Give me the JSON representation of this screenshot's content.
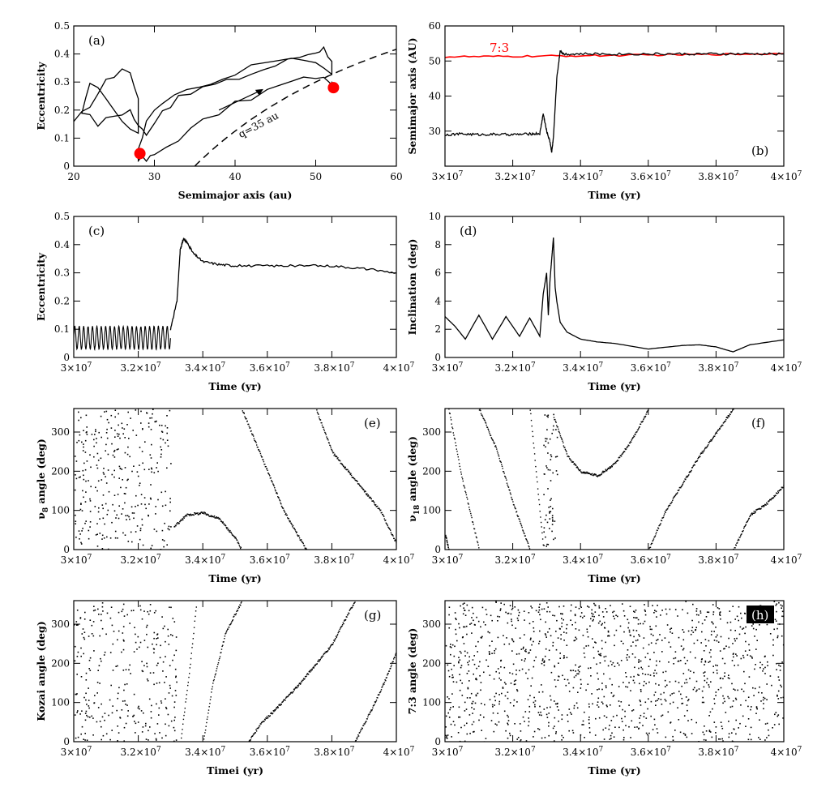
{
  "chart_data": [
    {
      "id": "a",
      "type": "line",
      "panel_label": "(a)",
      "xlabel": "Semimajor axis (au)",
      "ylabel": "Eccentricity",
      "xlim": [
        20,
        60
      ],
      "ylim": [
        0,
        0.5
      ],
      "xticks": [
        "20",
        "30",
        "40",
        "50",
        "60"
      ],
      "yticks": [
        "0",
        "0.1",
        "0.2",
        "0.3",
        "0.4",
        "0.5"
      ],
      "annotations": [
        {
          "text": "q=35 au"
        }
      ],
      "series": [
        {
          "kind": "trajectory",
          "color": "#000000",
          "x": [
            20,
            22,
            24,
            26,
            27,
            28,
            28,
            26,
            24,
            22,
            21,
            23,
            25,
            27,
            28,
            29,
            31,
            33,
            36,
            39,
            42,
            45,
            48,
            50,
            51,
            52,
            52,
            50,
            47,
            44,
            40,
            37,
            34,
            31,
            29,
            28,
            28,
            29,
            30,
            33,
            36,
            40,
            44,
            47,
            50,
            52,
            52
          ],
          "y": [
            0.15,
            0.22,
            0.3,
            0.35,
            0.33,
            0.25,
            0.12,
            0.16,
            0.25,
            0.3,
            0.2,
            0.15,
            0.18,
            0.2,
            0.14,
            0.12,
            0.2,
            0.24,
            0.28,
            0.3,
            0.33,
            0.36,
            0.39,
            0.41,
            0.42,
            0.38,
            0.32,
            0.36,
            0.38,
            0.37,
            0.33,
            0.3,
            0.27,
            0.23,
            0.15,
            0.06,
            0.03,
            0.02,
            0.04,
            0.1,
            0.16,
            0.22,
            0.27,
            0.3,
            0.32,
            0.3,
            0.28
          ]
        },
        {
          "kind": "markers",
          "color": "#ff0000",
          "x": [
            28.2,
            52.2
          ],
          "y": [
            0.045,
            0.28
          ]
        },
        {
          "kind": "q35-curve",
          "style": "dashed",
          "q": 35,
          "x_range": [
            35,
            60
          ]
        }
      ]
    },
    {
      "id": "b",
      "type": "line",
      "panel_label": "(b)",
      "xlabel": "Time (yr)",
      "ylabel": "Semimajor axis (AU)",
      "xlim": [
        30000000.0,
        40000000.0
      ],
      "ylim": [
        20,
        60
      ],
      "xticks": [
        "3×10",
        "3.2×10",
        "3.4×10",
        "3.6×10",
        "3.8×10",
        "4×10"
      ],
      "xtick_exp": "7",
      "yticks": [
        "30",
        "40",
        "50",
        "60"
      ],
      "annotations": [
        {
          "text": "7:3",
          "color": "#ff0000"
        }
      ],
      "series": [
        {
          "kind": "resonance",
          "color": "#ff0000",
          "x": [
            30000000.0,
            32000000.0,
            34000000.0,
            36000000.0,
            38000000.0,
            40000000.0
          ],
          "y": [
            51.2,
            51.3,
            51.5,
            51.7,
            51.9,
            52.1
          ]
        },
        {
          "kind": "orbit",
          "color": "#000000",
          "x": [
            30000000.0,
            30500000.0,
            31000000.0,
            31500000.0,
            32000000.0,
            32500000.0,
            32800000.0,
            32900000.0,
            33000000.0,
            33100000.0,
            33150000.0,
            33200000.0,
            33300000.0,
            33400000.0,
            33500000.0,
            34000000.0,
            35000000.0,
            36000000.0,
            37000000.0,
            38000000.0,
            39000000.0,
            40000000.0
          ],
          "y": [
            29,
            29.2,
            29,
            29.1,
            29,
            29.2,
            29.3,
            35,
            30,
            27,
            24,
            28,
            45,
            53,
            52,
            52,
            52,
            52,
            52,
            52,
            52,
            52
          ]
        }
      ]
    },
    {
      "id": "c",
      "type": "line",
      "panel_label": "(c)",
      "xlabel": "Time (yr)",
      "ylabel": "Eccentricity",
      "xlim": [
        30000000.0,
        40000000.0
      ],
      "ylim": [
        0,
        0.5
      ],
      "xticks": [
        "3×10",
        "3.2×10",
        "3.4×10",
        "3.6×10",
        "3.8×10",
        "4×10"
      ],
      "xtick_exp": "7",
      "yticks": [
        "0",
        "0.1",
        "0.2",
        "0.3",
        "0.4",
        "0.5"
      ],
      "series": [
        {
          "kind": "oscillation",
          "color": "#000000",
          "x_range": [
            30000000.0,
            33000000.0
          ],
          "y_min": 0.03,
          "y_max": 0.11,
          "cycles": 22
        },
        {
          "kind": "line",
          "color": "#000000",
          "x": [
            33000000.0,
            33200000.0,
            33300000.0,
            33400000.0,
            33500000.0,
            33700000.0,
            34000000.0,
            34500000.0,
            35000000.0,
            36000000.0,
            37000000.0,
            38000000.0,
            39000000.0,
            40000000.0
          ],
          "y": [
            0.1,
            0.2,
            0.38,
            0.42,
            0.41,
            0.37,
            0.34,
            0.33,
            0.325,
            0.325,
            0.325,
            0.325,
            0.315,
            0.3
          ]
        }
      ]
    },
    {
      "id": "d",
      "type": "line",
      "panel_label": "(d)",
      "xlabel": "Time (yr)",
      "ylabel": "Inclination (deg)",
      "xlim": [
        30000000.0,
        40000000.0
      ],
      "ylim": [
        0,
        10
      ],
      "xticks": [
        "3×10",
        "3.2×10",
        "3.4×10",
        "3.6×10",
        "3.8×10",
        "4×10"
      ],
      "xtick_exp": "7",
      "yticks": [
        "0",
        "2",
        "4",
        "6",
        "8",
        "10"
      ],
      "series": [
        {
          "kind": "line",
          "color": "#000000",
          "x": [
            30000000.0,
            30300000.0,
            30600000.0,
            31000000.0,
            31400000.0,
            31800000.0,
            32200000.0,
            32500000.0,
            32800000.0,
            32900000.0,
            33000000.0,
            33050000.0,
            33100000.0,
            33150000.0,
            33200000.0,
            33250000.0,
            33300000.0,
            33400000.0,
            33600000.0,
            34000000.0,
            34500000.0,
            35000000.0,
            36000000.0,
            37000000.0,
            37500000.0,
            38000000.0,
            38500000.0,
            39000000.0,
            40000000.0
          ],
          "y": [
            2.9,
            2.2,
            1.3,
            3.0,
            1.3,
            2.9,
            1.5,
            2.8,
            1.5,
            4.5,
            6.0,
            3.0,
            5.5,
            7.0,
            8.5,
            5.0,
            4.0,
            2.5,
            1.8,
            1.3,
            1.1,
            1.0,
            0.6,
            0.85,
            0.9,
            0.75,
            0.4,
            0.9,
            1.25
          ]
        }
      ]
    },
    {
      "id": "e",
      "type": "scatter",
      "panel_label": "(e)",
      "xlabel": "Time (yr)",
      "ylabel": "ν",
      "ylabel_subscript": "8",
      "ylabel_suffix": " angle (deg)",
      "xlim": [
        30000000.0,
        40000000.0
      ],
      "ylim": [
        0,
        360
      ],
      "xticks": [
        "3×10",
        "3.2×10",
        "3.4×10",
        "3.6×10",
        "3.8×10",
        "4×10"
      ],
      "xtick_exp": "7",
      "yticks": [
        "0",
        "100",
        "200",
        "300"
      ],
      "series": [
        {
          "kind": "scatter-cloud",
          "x_range": [
            30000000.0,
            33000000.0
          ],
          "y_range": [
            0,
            360
          ],
          "density": 0.6
        },
        {
          "kind": "dotted-track",
          "x": [
            33100000.0,
            33500000.0,
            34000000.0,
            34500000.0,
            35000000.0,
            35200000.0
          ],
          "y": [
            60,
            90,
            95,
            80,
            30,
            0
          ]
        },
        {
          "kind": "dotted-track",
          "x": [
            35200000.0,
            35500000.0,
            36000000.0,
            36500000.0,
            37200000.0
          ],
          "y": [
            360,
            300,
            200,
            100,
            0
          ]
        },
        {
          "kind": "dotted-track",
          "x": [
            37500000.0,
            38000000.0,
            38500000.0,
            39000000.0,
            39500000.0,
            40000000.0
          ],
          "y": [
            360,
            250,
            200,
            150,
            100,
            15
          ]
        }
      ]
    },
    {
      "id": "f",
      "type": "scatter",
      "panel_label": "(f)",
      "xlabel": "Time (yr)",
      "ylabel": "ν",
      "ylabel_subscript": "18",
      "ylabel_suffix": " angle (deg)",
      "xlim": [
        30000000.0,
        40000000.0
      ],
      "ylim": [
        0,
        360
      ],
      "xticks": [
        "3×10",
        "3.2×10",
        "3.4×10",
        "3.6×10",
        "3.8×10",
        "4×10"
      ],
      "xtick_exp": "7",
      "yticks": [
        "0",
        "100",
        "200",
        "300"
      ],
      "series": [
        {
          "kind": "dotted-track",
          "x": [
            30000000.0,
            30100000.0
          ],
          "y": [
            40,
            0
          ]
        },
        {
          "kind": "dotted-track",
          "x": [
            30100000.0,
            30500000.0,
            31000000.0
          ],
          "y": [
            360,
            180,
            0
          ]
        },
        {
          "kind": "dotted-track",
          "x": [
            31000000.0,
            31500000.0,
            32000000.0,
            32500000.0
          ],
          "y": [
            360,
            260,
            120,
            0
          ]
        },
        {
          "kind": "dotted-track",
          "x": [
            32500000.0,
            32900000.0
          ],
          "y": [
            360,
            0
          ]
        },
        {
          "kind": "scatter-cloud",
          "x_range": [
            32900000.0,
            33300000.0
          ],
          "y_range": [
            0,
            360
          ],
          "density": 0.9
        },
        {
          "kind": "dotted-track",
          "x": [
            33200000.0,
            33600000.0,
            34000000.0,
            34500000.0,
            35000000.0,
            35500000.0,
            36000000.0
          ],
          "y": [
            340,
            240,
            200,
            190,
            220,
            280,
            360
          ]
        },
        {
          "kind": "dotted-track",
          "x": [
            36000000.0,
            36500000.0,
            37000000.0,
            37500000.0,
            38000000.0,
            38500000.0
          ],
          "y": [
            0,
            100,
            170,
            240,
            300,
            360
          ]
        },
        {
          "kind": "dotted-track",
          "x": [
            38500000.0,
            39000000.0,
            39500000.0,
            40000000.0
          ],
          "y": [
            0,
            90,
            120,
            165
          ]
        }
      ]
    },
    {
      "id": "g",
      "type": "scatter",
      "panel_label": "(g)",
      "xlabel": "Timei (yr)",
      "ylabel": "Kozai angle (deg)",
      "xlim": [
        30000000.0,
        40000000.0
      ],
      "ylim": [
        0,
        360
      ],
      "xticks": [
        "3×10",
        "3.2×10",
        "3.4×10",
        "3.6×10",
        "3.8×10",
        "4×10"
      ],
      "xtick_exp": "7",
      "yticks": [
        "0",
        "100",
        "200",
        "300"
      ],
      "series": [
        {
          "kind": "scatter-cloud",
          "x_range": [
            30000000.0,
            33200000.0
          ],
          "y_range": [
            0,
            360
          ],
          "density": 0.55
        },
        {
          "kind": "dotted-track",
          "x": [
            33300000.0,
            33600000.0,
            33800000.0
          ],
          "y": [
            0,
            200,
            360
          ]
        },
        {
          "kind": "dotted-track",
          "x": [
            34000000.0,
            34300000.0,
            34700000.0,
            35200000.0
          ],
          "y": [
            0,
            150,
            280,
            360
          ]
        },
        {
          "kind": "dotted-track",
          "x": [
            35400000.0,
            35800000.0,
            36200000.0,
            37000000.0,
            38000000.0,
            38700000.0
          ],
          "y": [
            0,
            50,
            80,
            150,
            250,
            360
          ]
        },
        {
          "kind": "dotted-track",
          "x": [
            38700000.0,
            39200000.0,
            39600000.0,
            40000000.0
          ],
          "y": [
            0,
            80,
            150,
            230
          ]
        }
      ]
    },
    {
      "id": "h",
      "type": "scatter",
      "panel_label": "(h)",
      "xlabel": "Time (yr)",
      "ylabel": "7:3 angle (deg)",
      "xlim": [
        30000000.0,
        40000000.0
      ],
      "ylim": [
        0,
        360
      ],
      "xticks": [
        "3×10",
        "3.2×10",
        "3.4×10",
        "3.6×10",
        "3.8×10",
        "4×10"
      ],
      "xtick_exp": "7",
      "yticks": [
        "0",
        "100",
        "200",
        "300"
      ],
      "series": [
        {
          "kind": "scatter-cloud",
          "x_range": [
            30000000.0,
            40000000.0
          ],
          "y_range": [
            0,
            360
          ],
          "density": 0.7
        }
      ]
    }
  ]
}
